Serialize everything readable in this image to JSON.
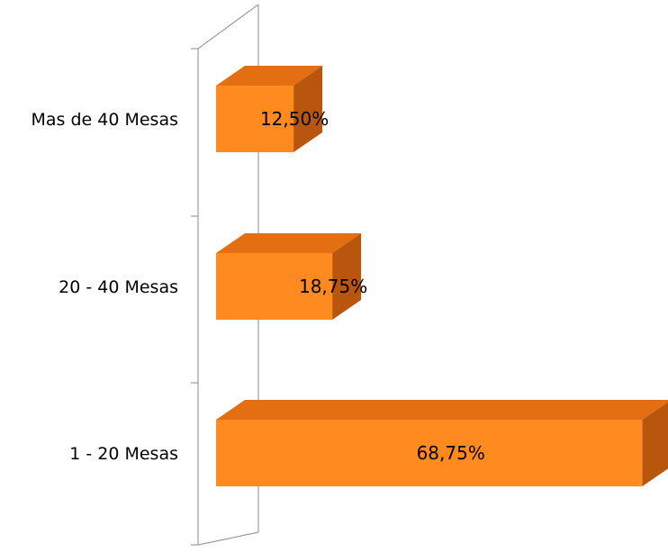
{
  "chart_data": {
    "type": "bar",
    "orientation": "horizontal",
    "style": "3d",
    "grid": false,
    "legend": "none",
    "title": "",
    "xlabel": "",
    "ylabel": "",
    "xlim": [
      0,
      0.7
    ],
    "categories": [
      "1 - 20 Mesas",
      "20 - 40 Mesas",
      "Mas de 40 Mesas"
    ],
    "values": [
      0.6875,
      0.1875,
      0.125
    ],
    "value_labels": [
      "68,75%",
      "18,75%",
      "12,50%"
    ],
    "colors": {
      "bar_front": "#ff8a20",
      "bar_top": "#e36f12",
      "bar_side": "#b9560d"
    }
  }
}
